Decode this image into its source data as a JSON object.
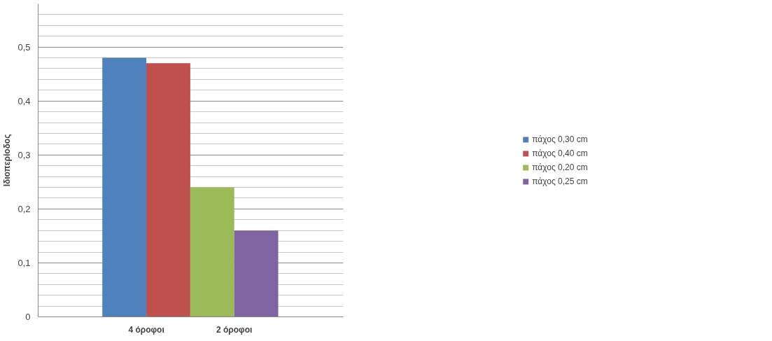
{
  "chart_data": {
    "type": "bar",
    "ylabel": "Ιδιοπερίοδος",
    "categories": [
      "4 όροφοι",
      "2 όροφοι"
    ],
    "series": [
      {
        "name": "πάχος 0,30 cm",
        "color": "#4f81bd",
        "values": [
          0.48,
          null
        ]
      },
      {
        "name": "πάχος 0,40 cm",
        "color": "#c0504d",
        "values": [
          0.47,
          null
        ]
      },
      {
        "name": "πάχος 0,20 cm",
        "color": "#9bbb59",
        "values": [
          null,
          0.24
        ]
      },
      {
        "name": "πάχος 0,25 cm",
        "color": "#8064a2",
        "values": [
          null,
          0.16
        ]
      }
    ],
    "ylim": [
      0,
      0.58
    ],
    "yticks": [
      {
        "value": 0,
        "label": "0"
      },
      {
        "value": 0.1,
        "label": "0,1"
      },
      {
        "value": 0.2,
        "label": "0,2"
      },
      {
        "value": 0.3,
        "label": "0,3"
      },
      {
        "value": 0.4,
        "label": "0,4"
      },
      {
        "value": 0.5,
        "label": "0,5"
      }
    ],
    "grid": "y",
    "legend": "right"
  }
}
